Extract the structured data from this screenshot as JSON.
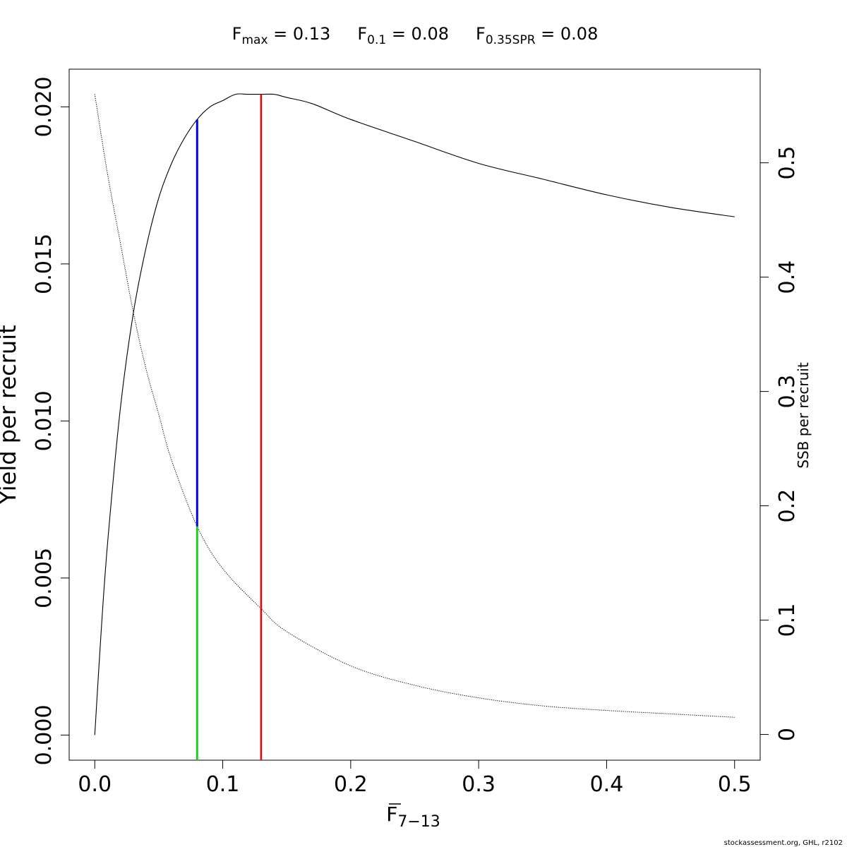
{
  "header": {
    "fmax_main": "F",
    "fmax_sub": "max",
    "fmax_val": " = 0.13",
    "f01_main": "F",
    "f01_sub": "0.1",
    "f01_val": " = 0.08",
    "fspr_main": "F",
    "fspr_sub": "0.35SPR",
    "fspr_val": " = 0.08"
  },
  "footer": "stockassessment.org, GHL, r2102",
  "chart_data": {
    "type": "line",
    "xlabel_main": "F",
    "xlabel_sub": "7−13",
    "ylabel_left": "Yield per recruit",
    "ylabel_right": "SSB per recruit",
    "xlim": [
      -0.02,
      0.52
    ],
    "ylim_left": [
      -0.0008,
      0.0212
    ],
    "ylim_right": [
      -0.0225,
      0.5819
    ],
    "x_ticks": [
      0.0,
      0.1,
      0.2,
      0.3,
      0.4,
      0.5
    ],
    "x_tick_labels": [
      "0.0",
      "0.1",
      "0.2",
      "0.3",
      "0.4",
      "0.5"
    ],
    "y_left_ticks": [
      0.0,
      0.005,
      0.01,
      0.015,
      0.02
    ],
    "y_left_tick_labels": [
      "0.000",
      "0.005",
      "0.010",
      "0.015",
      "0.020"
    ],
    "y_right_ticks": [
      0,
      0.1,
      0.2,
      0.3,
      0.4,
      0.5
    ],
    "y_right_tick_labels": [
      "0",
      "0.1",
      "0.2",
      "0.3",
      "0.4",
      "0.5"
    ],
    "series": [
      {
        "name": "Yield per recruit",
        "axis": "left",
        "style": "solid",
        "color": "#000000",
        "x": [
          0.0,
          0.005,
          0.01,
          0.02,
          0.03,
          0.04,
          0.05,
          0.06,
          0.07,
          0.08,
          0.09,
          0.1,
          0.11,
          0.12,
          0.13,
          0.14,
          0.15,
          0.17,
          0.2,
          0.25,
          0.3,
          0.35,
          0.4,
          0.45,
          0.5
        ],
        "y": [
          0.0,
          0.0033,
          0.0061,
          0.0104,
          0.0134,
          0.0155,
          0.0171,
          0.0182,
          0.019,
          0.0196,
          0.02,
          0.0202,
          0.0204,
          0.0204,
          0.0204,
          0.0204,
          0.0203,
          0.0201,
          0.0196,
          0.0189,
          0.0182,
          0.0177,
          0.0172,
          0.0168,
          0.0165
        ]
      },
      {
        "name": "SSB per recruit",
        "axis": "right",
        "style": "dotted",
        "color": "#000000",
        "x": [
          0.0,
          0.01,
          0.02,
          0.03,
          0.04,
          0.05,
          0.06,
          0.08,
          0.1,
          0.13,
          0.15,
          0.2,
          0.25,
          0.3,
          0.35,
          0.4,
          0.45,
          0.5
        ],
        "y": [
          0.56,
          0.49,
          0.43,
          0.37,
          0.32,
          0.28,
          0.24,
          0.182,
          0.145,
          0.11,
          0.09,
          0.06,
          0.043,
          0.032,
          0.025,
          0.021,
          0.018,
          0.015
        ]
      }
    ],
    "reference_lines": [
      {
        "name": "F0.1",
        "x": 0.08,
        "y_from": 0.0,
        "y_to": 0.0196,
        "colors": [
          "#22cc22",
          "#0000ee"
        ],
        "split_ssb": 0.182
      },
      {
        "name": "Fmax",
        "x": 0.13,
        "y_from": 0.0,
        "y_to": 0.0204,
        "colors": [
          "#ee0000"
        ]
      }
    ],
    "grid": false,
    "legend": "none"
  }
}
